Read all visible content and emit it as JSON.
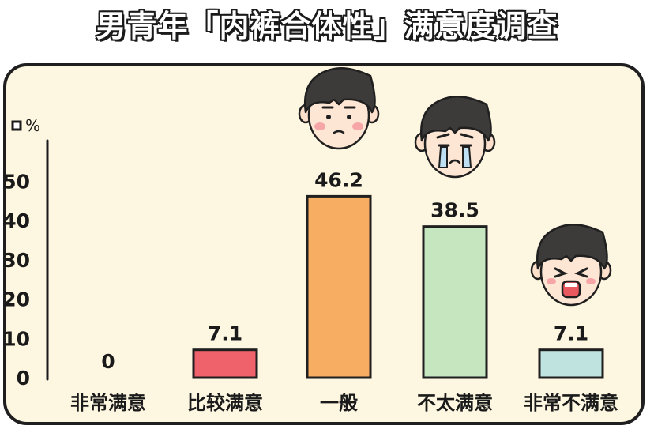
{
  "title": "男青年「内裤合体性」满意度调查",
  "chart_data": {
    "type": "bar",
    "title": "男青年「内裤合体性」满意度调查",
    "ylabel": "%",
    "ylim": [
      0,
      55
    ],
    "yticks": [
      0,
      10,
      20,
      30,
      40,
      50
    ],
    "categories": [
      "非常满意",
      "比较满意",
      "一般",
      "不太满意",
      "非常不满意"
    ],
    "values": [
      0,
      7.1,
      46.2,
      38.5,
      7.1
    ],
    "value_labels": [
      "0",
      "7.1",
      "46.2",
      "38.5",
      "7.1"
    ],
    "bar_colors": [
      "#fdf6e1",
      "#f0626b",
      "#f7ae62",
      "#c6e6c0",
      "#bfe3de"
    ],
    "grid": false,
    "legend": "none"
  },
  "colors": {
    "background": "#fdf6e1",
    "outline": "#1f1f1f"
  },
  "icons": [
    "neutral-face-icon",
    "crying-face-icon",
    "angry-face-icon"
  ]
}
